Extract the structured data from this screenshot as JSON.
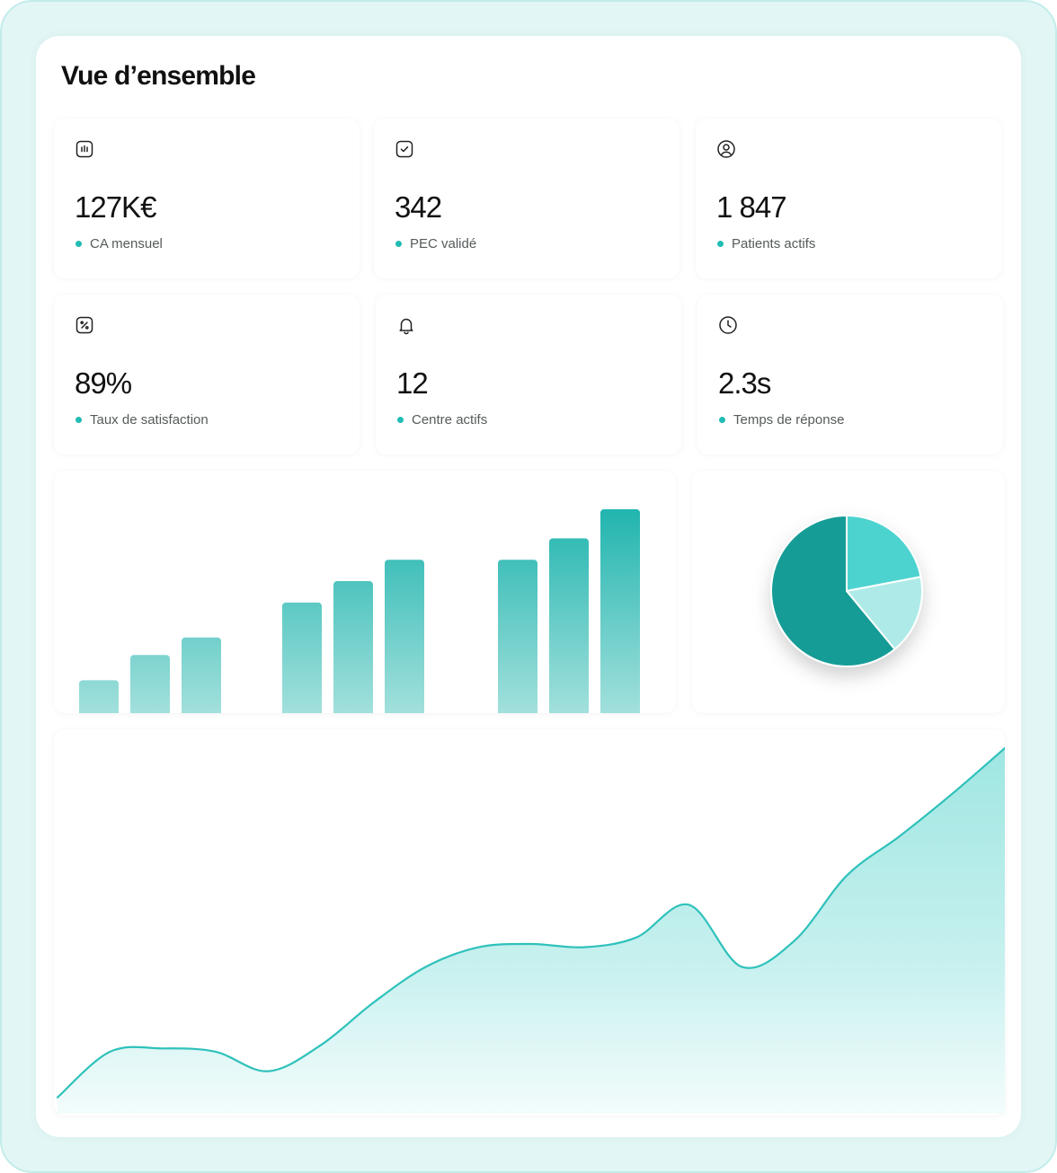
{
  "header": {
    "title": "Vue d’ensemble"
  },
  "kpis": [
    {
      "icon": "bar-chart-icon",
      "value": "127K€",
      "label": "CA mensuel"
    },
    {
      "icon": "check-square-icon",
      "value": "342",
      "label": "PEC validé"
    },
    {
      "icon": "user-circle-icon",
      "value": "1 847",
      "label": "Patients actifs"
    },
    {
      "icon": "percent-icon",
      "value": "89%",
      "label": "Taux de satisfaction"
    },
    {
      "icon": "bell-icon",
      "value": "12",
      "label": "Centre actifs"
    },
    {
      "icon": "clock-icon",
      "value": "2.3s",
      "label": "Temps de réponse"
    }
  ],
  "colors": {
    "accent": "#22bcb4",
    "bar_light": "#a2e0dc",
    "bar_dark": "#1ab2ac",
    "pie_dark": "#139c96",
    "pie_mid": "#4dd3cf",
    "pie_light": "#aeebe8",
    "line": "#2fc1bb"
  },
  "chart_data": [
    {
      "type": "bar",
      "groups": [
        {
          "values": [
            16,
            29,
            38
          ]
        },
        {
          "values": [
            56,
            67,
            78
          ]
        },
        {
          "values": [
            78,
            89,
            104
          ]
        }
      ],
      "ylim": [
        0,
        110
      ]
    },
    {
      "type": "pie",
      "slices": [
        {
          "value": 61
        },
        {
          "value": 22
        },
        {
          "value": 17
        }
      ]
    },
    {
      "type": "area",
      "x": [
        0,
        1,
        2,
        3,
        4,
        5,
        6,
        7,
        8,
        9,
        10,
        11,
        12,
        13,
        14,
        15,
        16,
        17,
        18
      ],
      "values": [
        5,
        19,
        20,
        19,
        13,
        21,
        34,
        45,
        51,
        52,
        51,
        54,
        64,
        45,
        53,
        73,
        85,
        98,
        112
      ],
      "ylim": [
        0,
        115
      ]
    }
  ]
}
